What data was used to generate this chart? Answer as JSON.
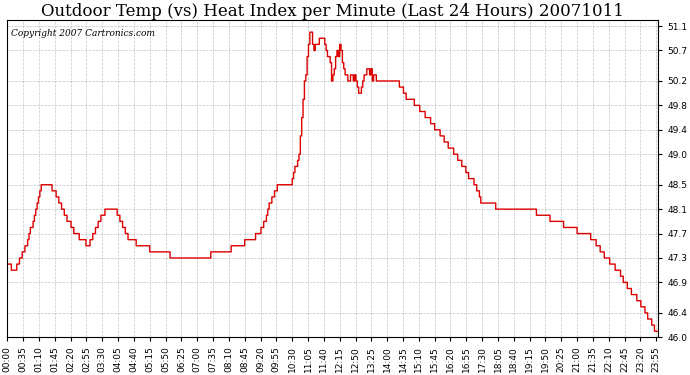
{
  "title": "Outdoor Temp (vs) Heat Index per Minute (Last 24 Hours) 20071011",
  "copyright_text": "Copyright 2007 Cartronics.com",
  "line_color": "#dd0000",
  "background_color": "#ffffff",
  "grid_color": "#aaaaaa",
  "y_min": 46.0,
  "y_max": 51.2,
  "y_ticks": [
    46.0,
    46.4,
    46.9,
    47.3,
    47.7,
    48.1,
    48.5,
    49.0,
    49.4,
    49.8,
    50.2,
    50.7,
    51.1
  ],
  "title_fontsize": 12,
  "tick_fontsize": 6.5,
  "copyright_fontsize": 6.5,
  "x_tick_every_minutes": 35
}
